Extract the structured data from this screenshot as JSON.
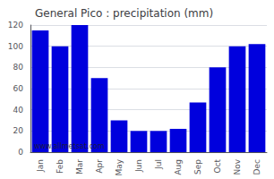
{
  "chart_data": {
    "type": "bar",
    "title": "General Pico : precipitation (mm)",
    "categories": [
      "Jan",
      "Feb",
      "Mar",
      "Apr",
      "May",
      "Jun",
      "Jul",
      "Aug",
      "Sep",
      "Oct",
      "Nov",
      "Dec"
    ],
    "values": [
      115,
      100,
      120,
      70,
      30,
      20,
      20,
      22,
      47,
      80,
      100,
      102
    ],
    "color": "#0000dd",
    "ylim": [
      0,
      120
    ],
    "yticks": [
      0,
      20,
      40,
      60,
      80,
      100,
      120
    ],
    "grid": true,
    "annotation": "www.allmetsat.com"
  }
}
